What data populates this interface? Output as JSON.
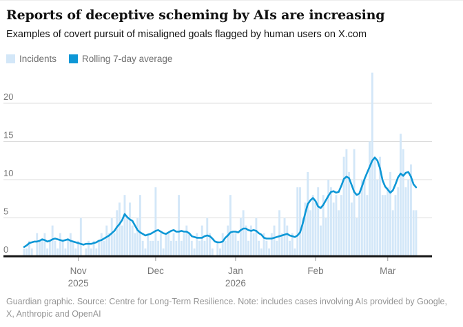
{
  "header": {
    "title": "Reports of deceptive scheming by AIs are increasing",
    "subtitle": "Examples of covert pursuit of misaligned goals flagged by human users on X.com"
  },
  "legend": {
    "incidents_label": "Incidents",
    "rolling_label": "Rolling 7-day average"
  },
  "colors": {
    "bar": "#d3e7f8",
    "line": "#0d97d6",
    "grid": "#dcdcdc",
    "axis_text": "#767676",
    "baseline": "#121212",
    "tick": "#999999"
  },
  "footer": {
    "note_line1": "Guardian graphic. Source: Centre for Long-Term Resilience. Note: includes cases involving AIs provided by Google,",
    "note_line2": "X, Anthropic and OpenAI"
  },
  "chart_data": {
    "type": "bar",
    "x_unit": "day",
    "start_date": "2025-10-11",
    "end_date": "2026-03-12",
    "ylim": [
      0,
      24
    ],
    "y_ticks": [
      0,
      5,
      10,
      15,
      20
    ],
    "grid": "horizontal",
    "legend_position": "top-left",
    "x_ticks": [
      {
        "label": "Nov",
        "sublabel": "2025",
        "day_index": 21
      },
      {
        "label": "Dec",
        "sublabel": "",
        "day_index": 51
      },
      {
        "label": "Jan",
        "sublabel": "2026",
        "day_index": 82
      },
      {
        "label": "Feb",
        "sublabel": "",
        "day_index": 113
      },
      {
        "label": "Mar",
        "sublabel": "",
        "day_index": 141
      }
    ],
    "series": [
      {
        "name": "Incidents",
        "type": "bar",
        "values": [
          1,
          1,
          2,
          1,
          0,
          3,
          2,
          2,
          3,
          1,
          2,
          4,
          2,
          1,
          3,
          2,
          1,
          2,
          3,
          2,
          1,
          2,
          5,
          0,
          1,
          2,
          1,
          2,
          1,
          2,
          3,
          2,
          4,
          3,
          5,
          3,
          6,
          7,
          4,
          8,
          5,
          7,
          4,
          3,
          5,
          8,
          2,
          1,
          3,
          2,
          2,
          9,
          2,
          3,
          1,
          3,
          3,
          2,
          3,
          2,
          8,
          2,
          3,
          4,
          3,
          2,
          1,
          3,
          2,
          4,
          2,
          5,
          3,
          1,
          0,
          2,
          1,
          3,
          2,
          4,
          8,
          3,
          3,
          2,
          5,
          6,
          4,
          2,
          4,
          3,
          5,
          2,
          1,
          3,
          2,
          1,
          3,
          4,
          2,
          6,
          3,
          5,
          4,
          2,
          3,
          1,
          9,
          9,
          5,
          7,
          11,
          6,
          8,
          7,
          9,
          4,
          8,
          5,
          10,
          9,
          7,
          8,
          6,
          8,
          13,
          14,
          11,
          7,
          14,
          5,
          8,
          10,
          10,
          8,
          15,
          24,
          13,
          10,
          13,
          8,
          8,
          9,
          11,
          6,
          8,
          9,
          16,
          14,
          9,
          10,
          12,
          6,
          6
        ]
      },
      {
        "name": "Rolling 7-day average",
        "type": "line",
        "values": [
          1.2,
          1.4,
          1.7,
          1.8,
          1.9,
          1.9,
          2.0,
          2.2,
          2.1,
          1.9,
          2.0,
          2.2,
          2.3,
          2.2,
          2.1,
          2.0,
          2.1,
          2.2,
          2.0,
          1.9,
          1.8,
          1.7,
          1.6,
          1.5,
          1.6,
          1.6,
          1.6,
          1.7,
          1.8,
          2.0,
          2.1,
          2.3,
          2.5,
          2.7,
          3.0,
          3.3,
          3.8,
          4.2,
          4.7,
          5.5,
          5.1,
          4.8,
          4.6,
          4.0,
          3.4,
          3.1,
          2.9,
          2.7,
          2.8,
          2.9,
          3.1,
          3.3,
          3.4,
          3.2,
          3.0,
          2.9,
          3.1,
          3.3,
          3.4,
          3.2,
          3.2,
          3.3,
          3.2,
          3.2,
          3.0,
          2.6,
          2.5,
          2.4,
          2.4,
          2.4,
          2.6,
          2.7,
          2.6,
          2.3,
          1.9,
          1.8,
          1.8,
          1.9,
          2.4,
          2.7,
          3.1,
          3.2,
          3.2,
          3.1,
          3.4,
          3.6,
          3.6,
          3.4,
          3.3,
          3.4,
          3.3,
          3.0,
          2.8,
          2.4,
          2.3,
          2.3,
          2.3,
          2.4,
          2.5,
          2.6,
          2.7,
          2.8,
          2.9,
          2.7,
          2.6,
          2.5,
          2.7,
          3.1,
          4.2,
          5.6,
          6.8,
          7.3,
          7.6,
          7.2,
          6.5,
          6.3,
          6.7,
          7.3,
          7.9,
          8.4,
          8.5,
          8.3,
          8.4,
          9.2,
          10.1,
          10.4,
          10.2,
          9.3,
          8.4,
          8.0,
          8.2,
          9.1,
          10.1,
          10.9,
          11.7,
          12.5,
          12.9,
          12.5,
          11.5,
          9.9,
          9.1,
          8.7,
          8.3,
          8.6,
          9.4,
          10.3,
          10.8,
          10.5,
          10.9,
          11.0,
          10.4,
          9.4,
          9.0
        ]
      }
    ]
  }
}
